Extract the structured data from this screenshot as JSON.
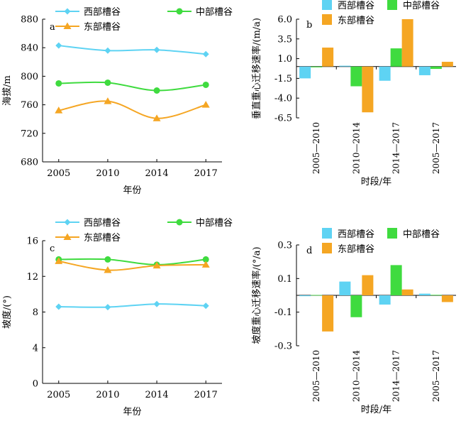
{
  "figure": {
    "colors": {
      "west": "#5ED3F3",
      "middle": "#3FDB3F",
      "east": "#F5A623"
    }
  },
  "chart_data": [
    {
      "panel_letter": "a",
      "type": "line",
      "x": [
        "2005",
        "2010",
        "2014",
        "2017"
      ],
      "series": [
        {
          "name": "西部槽谷",
          "values": [
            843,
            836,
            837,
            831
          ],
          "marker": "diamond"
        },
        {
          "name": "中部槽谷",
          "values": [
            790,
            791,
            780,
            788
          ],
          "marker": "circle"
        },
        {
          "name": "东部槽谷",
          "values": [
            752,
            765,
            741,
            760
          ],
          "marker": "triangle"
        }
      ],
      "xlabel": "年份",
      "ylabel": "海拔/m",
      "ylim": [
        680,
        880
      ],
      "yticks": [
        680,
        720,
        760,
        800,
        840,
        880
      ],
      "legend": "top"
    },
    {
      "panel_letter": "b",
      "type": "bar",
      "categories": [
        "2005—2010",
        "2010—2014",
        "2014—2017",
        "2005—2017"
      ],
      "series": [
        {
          "name": "西部槽谷",
          "values": [
            -1.5,
            0.1,
            -1.8,
            -1.1
          ]
        },
        {
          "name": "中部槽谷",
          "values": [
            -0.1,
            -2.5,
            2.3,
            -0.3
          ]
        },
        {
          "name": "东部槽谷",
          "values": [
            2.4,
            -5.8,
            6.0,
            0.6
          ]
        }
      ],
      "xlabel": "时段/年",
      "ylabel": "垂直重心迁移速率/(m/a)",
      "ylim": [
        -6.5,
        6.0
      ],
      "yticks": [
        6.0,
        3.5,
        1.0,
        -1.5,
        -4.0,
        -6.5
      ],
      "ytick_labels": [
        "6.0",
        "3.5",
        "1.0",
        "-1.5",
        "-4.0",
        "-6.5"
      ],
      "legend": "top"
    },
    {
      "panel_letter": "c",
      "type": "line",
      "x": [
        "2005",
        "2010",
        "2014",
        "2017"
      ],
      "series": [
        {
          "name": "西部槽谷",
          "values": [
            8.6,
            8.55,
            8.9,
            8.7
          ],
          "marker": "diamond"
        },
        {
          "name": "中部槽谷",
          "values": [
            13.9,
            13.9,
            13.3,
            13.9
          ],
          "marker": "circle"
        },
        {
          "name": "东部槽谷",
          "values": [
            13.7,
            12.7,
            13.2,
            13.3
          ],
          "marker": "triangle"
        }
      ],
      "xlabel": "年份",
      "ylabel": "坡度/(°)",
      "ylim": [
        0,
        16
      ],
      "yticks": [
        0,
        4,
        8,
        12,
        16
      ],
      "legend": "top"
    },
    {
      "panel_letter": "d",
      "type": "bar",
      "categories": [
        "2005—2010",
        "2010—2014",
        "2014—2017",
        "2005—2017"
      ],
      "series": [
        {
          "name": "西部槽谷",
          "values": [
            -0.005,
            0.082,
            -0.055,
            0.01
          ]
        },
        {
          "name": "中部槽谷",
          "values": [
            0.002,
            -0.13,
            0.18,
            0.003
          ]
        },
        {
          "name": "东部槽谷",
          "values": [
            -0.215,
            0.12,
            0.035,
            -0.04
          ]
        }
      ],
      "xlabel": "时段/年",
      "ylabel": "坡度重心迁移速率/(°/a)",
      "ylim": [
        -0.3,
        0.3
      ],
      "yticks": [
        0.3,
        0.1,
        -0.1,
        -0.3
      ],
      "ytick_labels": [
        "0.3",
        "0.1",
        "-0.1",
        "-0.3"
      ],
      "legend": "top"
    }
  ]
}
